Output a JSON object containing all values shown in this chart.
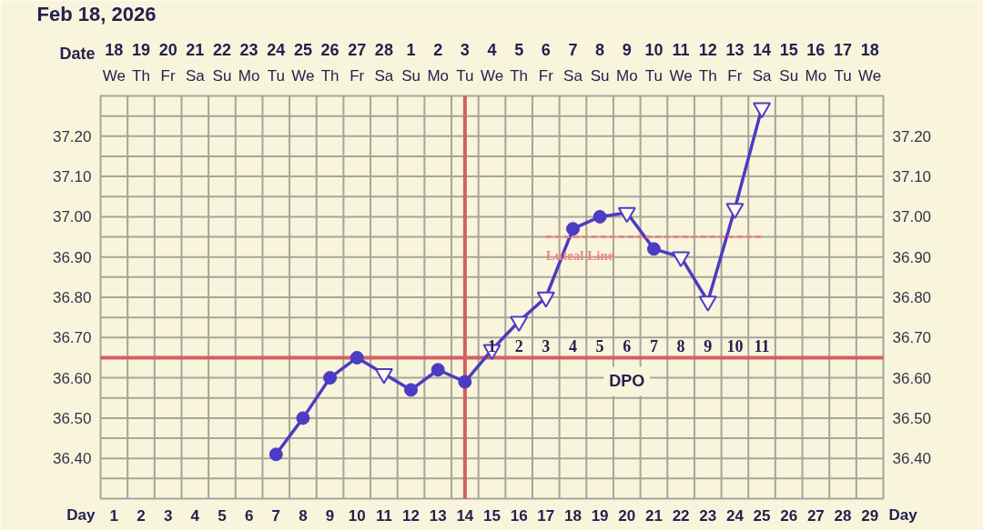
{
  "chart_data": {
    "type": "line",
    "title": "Feb 18, 2026",
    "xlabel": "Day",
    "x2label": "Date",
    "xlim": [
      0.5,
      29.5
    ],
    "xticks": [
      1,
      2,
      3,
      4,
      5,
      6,
      7,
      8,
      9,
      10,
      11,
      12,
      13,
      14,
      15,
      16,
      17,
      18,
      19,
      20,
      21,
      22,
      23,
      24,
      25,
      26,
      27,
      28,
      29
    ],
    "x2lim": [
      "2026-02-17T12:00",
      "2026-03-18T12:00"
    ],
    "x2ticks": [
      {
        "value": "2026-02-18",
        "label": "18\nWe"
      },
      {
        "value": "2026-02-19",
        "label": "19\nTh"
      },
      {
        "value": "2026-02-20",
        "label": "20\nFr"
      },
      {
        "value": "2026-02-21",
        "label": "21\nSa"
      },
      {
        "value": "2026-02-22",
        "label": "22\nSu"
      },
      {
        "value": "2026-02-23",
        "label": "23\nMo"
      },
      {
        "value": "2026-02-24",
        "label": "24\nTu"
      },
      {
        "value": "2026-02-25",
        "label": "25\nWe"
      },
      {
        "value": "2026-02-26",
        "label": "26\nTh"
      },
      {
        "value": "2026-02-27",
        "label": "27\nFr"
      },
      {
        "value": "2026-02-28",
        "label": "28\nSa"
      },
      {
        "value": "2026-03-01",
        "label": "1\nSu"
      },
      {
        "value": "2026-03-02",
        "label": "2\nMo"
      },
      {
        "value": "2026-03-03",
        "label": "3\nTu"
      },
      {
        "value": "2026-03-04",
        "label": "4\nWe"
      },
      {
        "value": "2026-03-05",
        "label": "5\nTh"
      },
      {
        "value": "2026-03-06",
        "label": "6\nFr"
      },
      {
        "value": "2026-03-07",
        "label": "7\nSa"
      },
      {
        "value": "2026-03-08",
        "label": "8\nSu"
      },
      {
        "value": "2026-03-09",
        "label": "9\nMo"
      },
      {
        "value": "2026-03-10",
        "label": "10\nTu"
      },
      {
        "value": "2026-03-11",
        "label": "11\nWe"
      },
      {
        "value": "2026-03-12",
        "label": "12\nTh"
      },
      {
        "value": "2026-03-13",
        "label": "13\nFr"
      },
      {
        "value": "2026-03-14",
        "label": "14\nSa"
      },
      {
        "value": "2026-03-15",
        "label": "15\nSu"
      },
      {
        "value": "2026-03-16",
        "label": "16\nMo"
      },
      {
        "value": "2026-03-17",
        "label": "17\nTu"
      },
      {
        "value": "2026-03-18",
        "label": "18\nWe"
      }
    ],
    "ylim": [
      36.3,
      37.3
    ],
    "yticks": [
      {
        "value": 36.35,
        "label": null
      },
      {
        "value": 36.4,
        "label": "36.40"
      },
      {
        "value": 36.45,
        "label": null
      },
      {
        "value": 36.5,
        "label": "36.50"
      },
      {
        "value": 36.55,
        "label": null
      },
      {
        "value": 36.6,
        "label": "36.60"
      },
      {
        "value": 36.7,
        "label": "36.70"
      },
      {
        "value": 36.75,
        "label": null
      },
      {
        "value": 36.8,
        "label": "36.80"
      },
      {
        "value": 36.85,
        "label": null
      },
      {
        "value": 36.9,
        "label": "36.90"
      },
      {
        "value": 36.95,
        "label": null
      },
      {
        "value": 37.0,
        "label": "37.00"
      },
      {
        "value": 37.05,
        "label": null
      },
      {
        "value": 37.1,
        "label": "37.10"
      },
      {
        "value": 37.15,
        "label": null
      },
      {
        "value": 37.2,
        "label": "37.20"
      },
      {
        "value": 37.25,
        "label": null
      }
    ],
    "y2lim": [
      36.3,
      37.3
    ],
    "y2ticks": [
      {
        "value": 36.35,
        "label": null
      },
      {
        "value": 36.4,
        "label": "36.40"
      },
      {
        "value": 36.45,
        "label": null
      },
      {
        "value": 36.5,
        "label": "36.50"
      },
      {
        "value": 36.55,
        "label": null
      },
      {
        "value": 36.6,
        "label": "36.60"
      },
      {
        "value": 36.7,
        "label": "36.70"
      },
      {
        "value": 36.75,
        "label": null
      },
      {
        "value": 36.8,
        "label": "36.80"
      },
      {
        "value": 36.85,
        "label": null
      },
      {
        "value": 36.9,
        "label": "36.90"
      },
      {
        "value": 36.95,
        "label": null
      },
      {
        "value": 37.0,
        "label": "37.00"
      },
      {
        "value": 37.05,
        "label": null
      },
      {
        "value": 37.1,
        "label": "37.10"
      },
      {
        "value": 37.15,
        "label": null
      },
      {
        "value": 37.2,
        "label": "37.20"
      },
      {
        "value": 37.25,
        "label": null
      }
    ],
    "grid": true,
    "series": [
      {
        "type": "line",
        "color": "#4b3cc4",
        "marker": "none",
        "x": [
          7,
          8,
          9,
          10,
          11,
          12,
          13,
          14,
          15,
          16,
          17,
          18,
          19,
          20,
          21,
          22,
          23,
          24,
          25
        ],
        "values": [
          36.41,
          36.5,
          36.6,
          36.65,
          36.61,
          36.57,
          36.62,
          36.59,
          36.67,
          36.74,
          36.8,
          36.97,
          37.0,
          37.01,
          36.92,
          36.9,
          36.79,
          37.02,
          37.27
        ]
      },
      {
        "type": "scatter",
        "color": "#4b3cc4",
        "marker": "circle",
        "x": [
          7,
          8,
          9,
          10,
          12,
          13,
          14,
          18,
          19,
          21
        ],
        "values": [
          36.41,
          36.5,
          36.6,
          36.65,
          36.57,
          36.62,
          36.59,
          36.97,
          37.0,
          36.92
        ]
      },
      {
        "type": "scatter",
        "color": "#4b3cc4",
        "marker": "triangle",
        "x": [
          11,
          15,
          16,
          17,
          20,
          22,
          23,
          24,
          25
        ],
        "values": [
          36.61,
          36.67,
          36.74,
          36.8,
          37.01,
          36.9,
          36.79,
          37.02,
          37.27
        ]
      },
      {
        "type": "line",
        "name": "Luteal Line",
        "color": "#f0857c",
        "line_style": "dashed",
        "x": [
          17,
          25
        ],
        "values": [
          36.95,
          36.95
        ]
      }
    ],
    "ref_lines": [
      {
        "axis": "x",
        "value": 14,
        "color": "#d45f5f"
      },
      {
        "axis": "y",
        "value": 36.65,
        "color": "#d45f5f"
      }
    ],
    "annotations": [
      {
        "text": "1",
        "x": 15,
        "y": 36.65
      },
      {
        "text": "2",
        "x": 16,
        "y": 36.65
      },
      {
        "text": "3",
        "x": 17,
        "y": 36.65
      },
      {
        "text": "4",
        "x": 18,
        "y": 36.65
      },
      {
        "text": "5",
        "x": 19,
        "y": 36.65
      },
      {
        "text": "6",
        "x": 20,
        "y": 36.65
      },
      {
        "text": "7",
        "x": 21,
        "y": 36.65
      },
      {
        "text": "8",
        "x": 22,
        "y": 36.65
      },
      {
        "text": "9",
        "x": 23,
        "y": 36.65
      },
      {
        "text": "10",
        "x": 24,
        "y": 36.65
      },
      {
        "text": "11",
        "x": 25,
        "y": 36.65
      },
      "DPO"
    ]
  }
}
